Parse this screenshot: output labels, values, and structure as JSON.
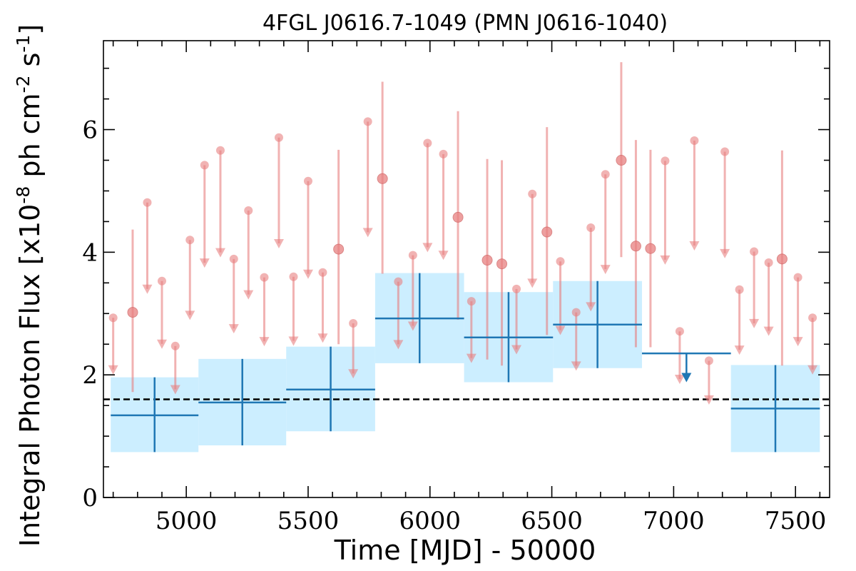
{
  "chart_data": {
    "type": "scatter",
    "title": "4FGL J0616.7-1049 (PMN J0616-1040)",
    "xlabel": "Time [MJD] - 50000",
    "ylabel": "Integral Photon Flux [x10",
    "ylabel_exp1": "-8",
    "ylabel_mid": " ph cm",
    "ylabel_exp2": "-2",
    "ylabel_mid2": " s",
    "ylabel_exp3": "-1",
    "ylabel_end": "]",
    "xlim": [
      4660,
      7640
    ],
    "ylim": [
      0,
      7.45
    ],
    "x_ticks": [
      5000,
      5500,
      6000,
      6500,
      7000,
      7500
    ],
    "x_tick_labels": [
      "5000",
      "5500",
      "6000",
      "6500",
      "7000",
      "7500"
    ],
    "y_ticks": [
      0,
      2,
      4,
      6
    ],
    "y_tick_labels": [
      "0",
      "2",
      "4",
      "6"
    ],
    "grid": false,
    "reference_line": {
      "y": 1.6,
      "style": "dashed",
      "color": "#000000"
    },
    "colors": {
      "short_bins": "#e88080",
      "long_bins": "#1f77b4",
      "long_bins_fill": "#cceeff"
    },
    "series": [
      {
        "bin_width_days": 60,
        "upper_limits": [
          {
            "x": 4700,
            "y": 2.93
          },
          {
            "x": 4840,
            "y": 4.81
          },
          {
            "x": 4900,
            "y": 3.53
          },
          {
            "x": 4955,
            "y": 2.47
          },
          {
            "x": 5015,
            "y": 4.2
          },
          {
            "x": 5075,
            "y": 5.42
          },
          {
            "x": 5140,
            "y": 5.66
          },
          {
            "x": 5195,
            "y": 3.89
          },
          {
            "x": 5255,
            "y": 4.68
          },
          {
            "x": 5320,
            "y": 3.59
          },
          {
            "x": 5380,
            "y": 5.87
          },
          {
            "x": 5440,
            "y": 3.6
          },
          {
            "x": 5500,
            "y": 5.16
          },
          {
            "x": 5560,
            "y": 3.67
          },
          {
            "x": 5685,
            "y": 2.84
          },
          {
            "x": 5745,
            "y": 6.13
          },
          {
            "x": 5870,
            "y": 3.52
          },
          {
            "x": 5930,
            "y": 3.95
          },
          {
            "x": 5990,
            "y": 5.78
          },
          {
            "x": 6055,
            "y": 5.6
          },
          {
            "x": 6170,
            "y": 3.2
          },
          {
            "x": 6355,
            "y": 3.4
          },
          {
            "x": 6420,
            "y": 4.95
          },
          {
            "x": 6535,
            "y": 3.85
          },
          {
            "x": 6600,
            "y": 3.02
          },
          {
            "x": 6660,
            "y": 4.4
          },
          {
            "x": 6720,
            "y": 5.27
          },
          {
            "x": 6965,
            "y": 5.49
          },
          {
            "x": 7025,
            "y": 2.71
          },
          {
            "x": 7085,
            "y": 5.82
          },
          {
            "x": 7145,
            "y": 2.23
          },
          {
            "x": 7210,
            "y": 5.64
          },
          {
            "x": 7270,
            "y": 3.39
          },
          {
            "x": 7330,
            "y": 4.01
          },
          {
            "x": 7390,
            "y": 3.83
          },
          {
            "x": 7510,
            "y": 3.59
          },
          {
            "x": 7570,
            "y": 2.93
          }
        ],
        "detections": [
          {
            "x": 4780,
            "y": 3.02,
            "ylo": 1.72,
            "yhi": 4.37
          },
          {
            "x": 5625,
            "y": 4.05,
            "ylo": 2.5,
            "yhi": 5.67
          },
          {
            "x": 5805,
            "y": 5.2,
            "ylo": 3.65,
            "yhi": 6.78
          },
          {
            "x": 6115,
            "y": 4.57,
            "ylo": 2.9,
            "yhi": 6.3
          },
          {
            "x": 6235,
            "y": 3.87,
            "ylo": 2.25,
            "yhi": 5.52
          },
          {
            "x": 6295,
            "y": 3.81,
            "ylo": 2.15,
            "yhi": 5.5
          },
          {
            "x": 6480,
            "y": 4.33,
            "ylo": 2.65,
            "yhi": 6.04
          },
          {
            "x": 6785,
            "y": 5.5,
            "ylo": 3.92,
            "yhi": 7.1
          },
          {
            "x": 6845,
            "y": 4.1,
            "ylo": 2.45,
            "yhi": 5.83
          },
          {
            "x": 6905,
            "y": 4.06,
            "ylo": 2.45,
            "yhi": 5.67
          },
          {
            "x": 7445,
            "y": 3.89,
            "ylo": 2.15,
            "yhi": 5.66
          }
        ]
      },
      {
        "bin_width_days": 365,
        "bins": [
          {
            "x0": 4690,
            "x1": 5050,
            "y": 1.34,
            "ylo": 0.74,
            "yhi": 1.96
          },
          {
            "x0": 5050,
            "x1": 5410,
            "y": 1.55,
            "ylo": 0.85,
            "yhi": 2.26
          },
          {
            "x0": 5410,
            "x1": 5775,
            "y": 1.76,
            "ylo": 1.08,
            "yhi": 2.46
          },
          {
            "x0": 5775,
            "x1": 6140,
            "y": 2.92,
            "ylo": 2.19,
            "yhi": 3.66
          },
          {
            "x0": 6140,
            "x1": 6505,
            "y": 2.61,
            "ylo": 1.88,
            "yhi": 3.35
          },
          {
            "x0": 6505,
            "x1": 6870,
            "y": 2.82,
            "ylo": 2.11,
            "yhi": 3.53
          },
          {
            "x0": 7235,
            "x1": 7600,
            "y": 1.45,
            "ylo": 0.74,
            "yhi": 2.16
          }
        ],
        "upper_limits": [
          {
            "x0": 6870,
            "x1": 7235,
            "y": 2.35
          }
        ]
      }
    ]
  }
}
